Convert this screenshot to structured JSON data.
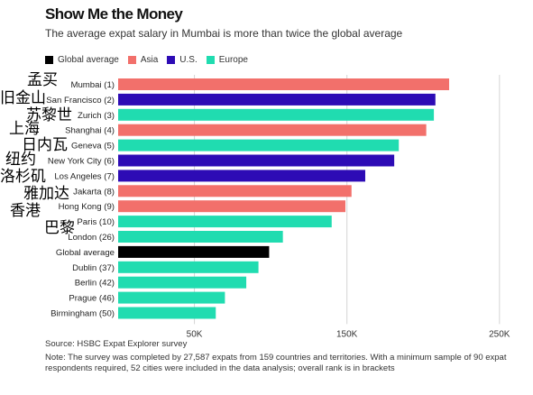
{
  "chart_data": {
    "type": "bar",
    "orientation": "horizontal",
    "title": "Show Me the Money",
    "subtitle": "The average expat salary in Mumbai is more than twice the global average",
    "legend": [
      {
        "name": "Global average",
        "color": "#000000"
      },
      {
        "name": "Asia",
        "color": "#f2706b"
      },
      {
        "name": "U.S.",
        "color": "#2d0bb5"
      },
      {
        "name": "Europe",
        "color": "#20dcb0"
      }
    ],
    "categories": [
      "Mumbai (1)",
      "San Francisco (2)",
      "Zurich (3)",
      "Shanghai (4)",
      "Geneva (5)",
      "New York City (6)",
      "Los Angeles (7)",
      "Jakarta (8)",
      "Hong Kong (9)",
      "Paris (10)",
      "London (26)",
      "Global average",
      "Dublin (37)",
      "Berlin (42)",
      "Prague (46)",
      "Birmingham (50)"
    ],
    "values": [
      217000,
      208000,
      207000,
      202000,
      184000,
      181000,
      162000,
      153000,
      149000,
      140000,
      108000,
      99000,
      92000,
      84000,
      70000,
      64000
    ],
    "groups": [
      "Asia",
      "U.S.",
      "Europe",
      "Asia",
      "Europe",
      "U.S.",
      "U.S.",
      "Asia",
      "Asia",
      "Europe",
      "Europe",
      "Global average",
      "Europe",
      "Europe",
      "Europe",
      "Europe"
    ],
    "xlim": [
      0,
      270000
    ],
    "x_ticks": [
      50000,
      150000,
      250000
    ],
    "x_tick_labels": [
      "50K",
      "150K",
      "250K"
    ],
    "grid": "vertical",
    "legend_placement": "top-left"
  },
  "footer": {
    "source": "Source: HSBC Expat Explorer survey",
    "note": "Note: The survey was completed by 27,587 expats from 159 countries and territories. With a minimum sample of 90 expat respondents required, 52 cities were included in the data analysis; overall rank is in brackets"
  },
  "annotations": [
    "孟买",
    "旧金山",
    "苏黎世",
    "上海",
    "日内瓦",
    "纽约",
    "洛杉矶",
    "雅加达",
    "香港",
    "巴黎"
  ]
}
